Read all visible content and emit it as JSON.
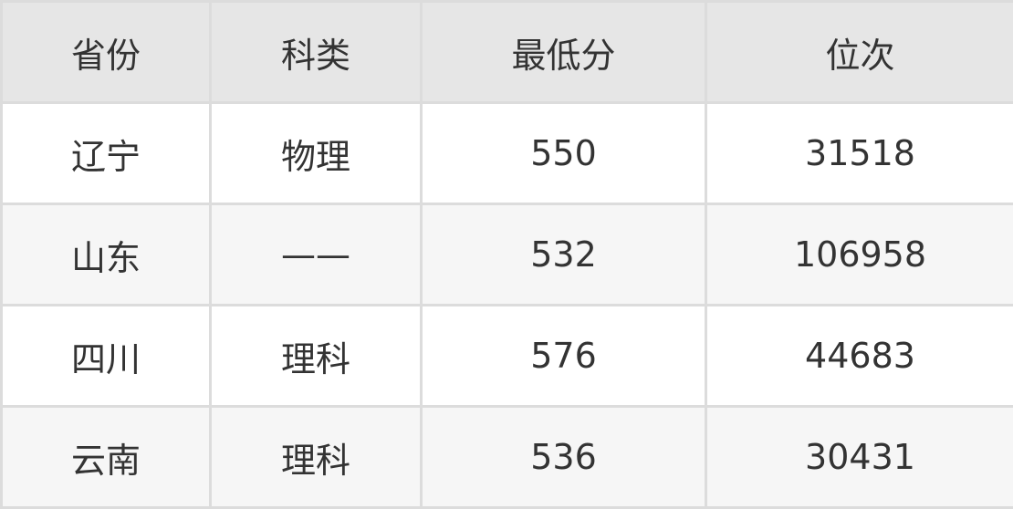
{
  "headers": [
    "省份",
    "科类",
    "最低分",
    "位次"
  ],
  "rows": [
    [
      "辽宁",
      "物理",
      "550",
      "31518"
    ],
    [
      "山东",
      "——",
      "532",
      "106958"
    ],
    [
      "四川",
      "理科",
      "576",
      "44683"
    ],
    [
      "云南",
      "理科",
      "536",
      "30431"
    ]
  ]
}
